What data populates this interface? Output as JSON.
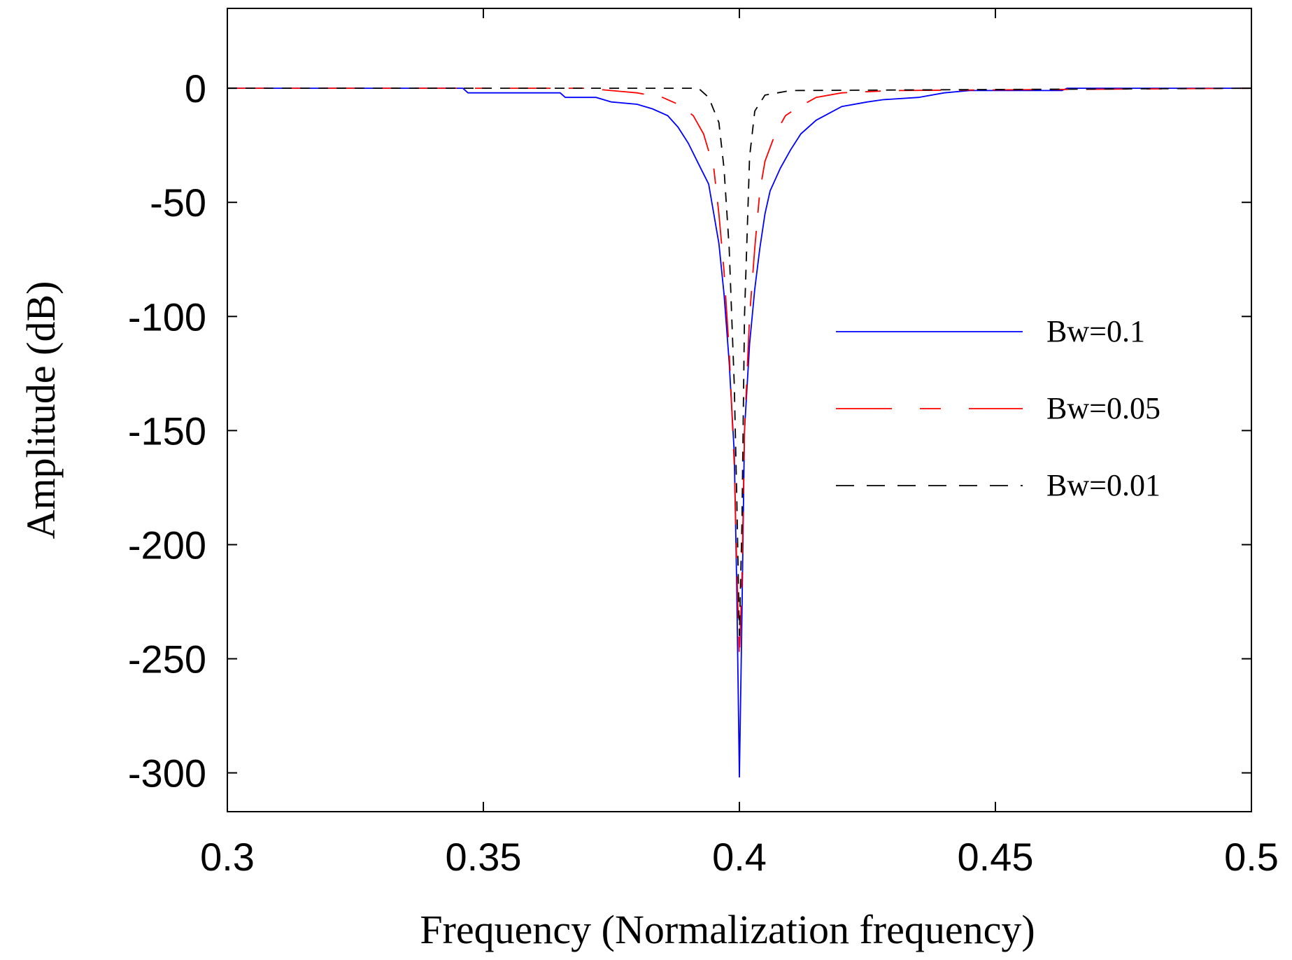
{
  "chart_data": {
    "type": "line",
    "title": "",
    "xlabel": "Frequency (Normalization frequency)",
    "ylabel": "Amplitude (dB)",
    "xlim": [
      0.3,
      0.5
    ],
    "ylim": [
      -317,
      35
    ],
    "xticks": [
      0.3,
      0.35,
      0.4,
      0.45,
      0.5
    ],
    "xtick_labels": [
      "0.3",
      "0.35",
      "0.4",
      "0.45",
      "0.5"
    ],
    "yticks": [
      0,
      -50,
      -100,
      -150,
      -200,
      -250,
      -300
    ],
    "ytick_labels": [
      "0",
      "-50",
      "-100",
      "-150",
      "-200",
      "-250",
      "-300"
    ],
    "grid": false,
    "legend_position": "right",
    "series": [
      {
        "name": "Bw=0.1",
        "color": "#0000ff",
        "dash": "solid",
        "x": [
          0.3,
          0.346,
          0.347,
          0.365,
          0.366,
          0.372,
          0.375,
          0.38,
          0.383,
          0.386,
          0.388,
          0.39,
          0.392,
          0.394,
          0.395,
          0.396,
          0.397,
          0.398,
          0.399,
          0.3995,
          0.4,
          0.4005,
          0.401,
          0.402,
          0.403,
          0.404,
          0.405,
          0.406,
          0.408,
          0.41,
          0.412,
          0.415,
          0.42,
          0.425,
          0.428,
          0.435,
          0.44,
          0.445,
          0.463,
          0.464,
          0.5
        ],
        "y": [
          0,
          0,
          -2,
          -2,
          -4,
          -4,
          -6,
          -7,
          -9,
          -12,
          -17,
          -24,
          -33,
          -42,
          -55,
          -68,
          -90,
          -120,
          -160,
          -220,
          -302,
          -230,
          -150,
          -112,
          -88,
          -70,
          -55,
          -45,
          -35,
          -27,
          -20,
          -14,
          -8,
          -6,
          -5,
          -4,
          -2,
          -1,
          -1,
          0,
          0
        ]
      },
      {
        "name": "Bw=0.05",
        "color": "#ff0000",
        "dash": "long-dash",
        "x": [
          0.3,
          0.37,
          0.38,
          0.385,
          0.388,
          0.391,
          0.393,
          0.395,
          0.396,
          0.397,
          0.398,
          0.399,
          0.3995,
          0.4,
          0.4005,
          0.401,
          0.402,
          0.403,
          0.404,
          0.405,
          0.407,
          0.409,
          0.411,
          0.415,
          0.42,
          0.43,
          0.5
        ],
        "y": [
          0,
          0,
          -2,
          -4,
          -7,
          -12,
          -20,
          -35,
          -55,
          -80,
          -115,
          -165,
          -210,
          -250,
          -215,
          -150,
          -100,
          -70,
          -45,
          -32,
          -20,
          -12,
          -9,
          -4,
          -2,
          -1,
          0
        ]
      },
      {
        "name": "Bw=0.01",
        "color": "#000000",
        "dash": "short-dash",
        "x": [
          0.3,
          0.392,
          0.394,
          0.396,
          0.397,
          0.398,
          0.399,
          0.3995,
          0.4,
          0.4005,
          0.401,
          0.402,
          0.403,
          0.405,
          0.41,
          0.5
        ],
        "y": [
          0,
          0,
          -4,
          -15,
          -35,
          -70,
          -130,
          -180,
          -240,
          -190,
          -100,
          -30,
          -10,
          -3,
          -1,
          0
        ]
      }
    ]
  }
}
